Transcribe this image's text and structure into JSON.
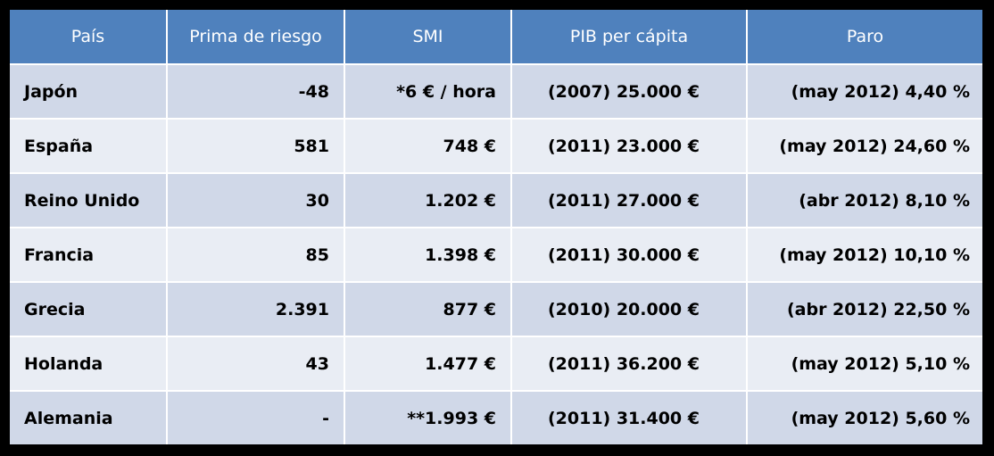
{
  "table": {
    "headers": {
      "pais": "País",
      "prima": "Prima de riesgo",
      "smi": "SMI",
      "pib": "PIB per cápita",
      "paro": "Paro"
    },
    "rows": [
      {
        "pais": "Japón",
        "prima": "-48",
        "smi": "*6 € / hora",
        "pib": "(2007) 25.000 €",
        "paro": "(may 2012)  4,40 %"
      },
      {
        "pais": "España",
        "prima": "581",
        "smi": "748 €",
        "pib": "(2011) 23.000 €",
        "paro": "(may 2012)  24,60 %"
      },
      {
        "pais": "Reino Unido",
        "prima": "30",
        "smi": "1.202 €",
        "pib": "(2011) 27.000 €",
        "paro": "(abr 2012) 8,10 %"
      },
      {
        "pais": "Francia",
        "prima": "85",
        "smi": "1.398 €",
        "pib": "(2011) 30.000 €",
        "paro": "(may 2012) 10,10 %"
      },
      {
        "pais": "Grecia",
        "prima": "2.391",
        "smi": "877 €",
        "pib": "(2010) 20.000 €",
        "paro": "(abr 2012) 22,50 %"
      },
      {
        "pais": "Holanda",
        "prima": "43",
        "smi": "1.477 €",
        "pib": "(2011) 36.200 €",
        "paro": "(may 2012) 5,10 %"
      },
      {
        "pais": "Alemania",
        "prima": "-",
        "smi": "**1.993 €",
        "pib": "(2011) 31.400 €",
        "paro": "(may 2012) 5,60 %"
      }
    ]
  },
  "colors": {
    "background": "#000000",
    "header_bg": "#4f81bd",
    "header_text": "#ffffff",
    "row_odd_bg": "#d0d8e8",
    "row_even_bg": "#e9edf4",
    "cell_text": "#000000"
  }
}
